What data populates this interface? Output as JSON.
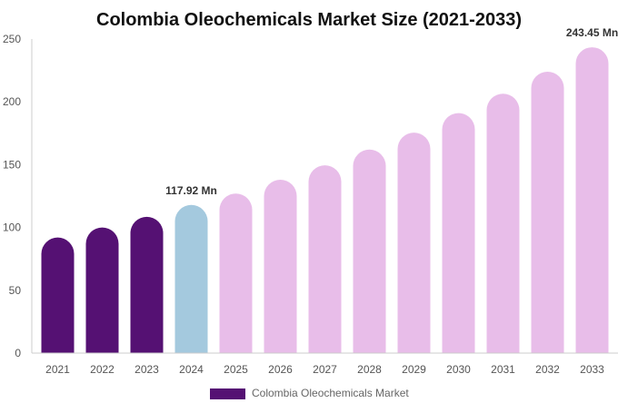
{
  "chart_data": {
    "type": "bar",
    "title": "Colombia Oleochemicals Market Size (2021-2033)",
    "xlabel": "",
    "ylabel": "",
    "ylim": [
      0,
      250
    ],
    "yticks": [
      0,
      50,
      100,
      150,
      200,
      250
    ],
    "grid": false,
    "legend_placement": "bottom",
    "categories": [
      "2021",
      "2022",
      "2023",
      "2024",
      "2025",
      "2026",
      "2027",
      "2028",
      "2029",
      "2030",
      "2031",
      "2032",
      "2033"
    ],
    "series": [
      {
        "name": "Colombia Oleochemicals Market",
        "values": [
          92,
          100,
          108.5,
          117.92,
          127,
          138,
          149.5,
          162,
          175.5,
          191,
          206.5,
          224,
          243.45
        ]
      }
    ],
    "data_labels": [
      {
        "category": "2024",
        "text": "117.92 Mn"
      },
      {
        "category": "2033",
        "text": "243.45 Mn"
      }
    ],
    "colors": {
      "historical": "#551173",
      "base_year": "#a4c9de",
      "forecast": "#e8bde9",
      "axis": "#cccccc",
      "tick_text": "#555555"
    }
  }
}
